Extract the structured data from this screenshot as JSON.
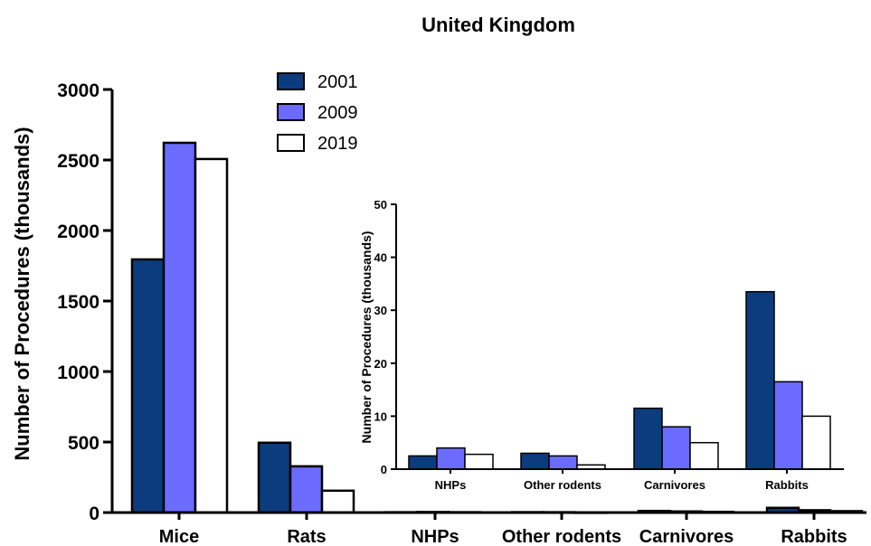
{
  "chart_data": [
    {
      "type": "bar",
      "title": "United Kingdom",
      "xlabel": "",
      "ylabel": "Number of Procedures (thousands)",
      "ylim": [
        0,
        3000
      ],
      "yticks": [
        "0",
        "500",
        "1000",
        "1500",
        "2000",
        "2500",
        "3000"
      ],
      "categories": [
        "Mice",
        "Rats",
        "NHPs",
        "Other rodents",
        "Carnivores",
        "Rabbits"
      ],
      "series": [
        {
          "name": "2001",
          "color": "#0b3c7d",
          "values": [
            1795,
            495,
            2.5,
            3,
            11.5,
            33.5
          ]
        },
        {
          "name": "2009",
          "color": "#6b6bff",
          "values": [
            2622,
            328,
            4,
            2.5,
            8,
            16.5
          ]
        },
        {
          "name": "2019",
          "color": "#ffffff",
          "values": [
            2507,
            155,
            2.8,
            0.8,
            5,
            10
          ]
        }
      ],
      "legend_position": "top"
    },
    {
      "type": "bar",
      "title": "",
      "xlabel": "",
      "ylabel": "Number of Procedures (thousands)",
      "ylim": [
        0,
        50
      ],
      "yticks": [
        "0",
        "10",
        "20",
        "30",
        "40",
        "50"
      ],
      "categories": [
        "NHPs",
        "Other rodents",
        "Carnivores",
        "Rabbits"
      ],
      "series": [
        {
          "name": "2001",
          "color": "#0b3c7d",
          "values": [
            2.5,
            3,
            11.5,
            33.5
          ]
        },
        {
          "name": "2009",
          "color": "#6b6bff",
          "values": [
            4,
            2.5,
            8,
            16.5
          ]
        },
        {
          "name": "2019",
          "color": "#ffffff",
          "values": [
            2.8,
            0.8,
            5,
            10
          ]
        }
      ]
    }
  ]
}
